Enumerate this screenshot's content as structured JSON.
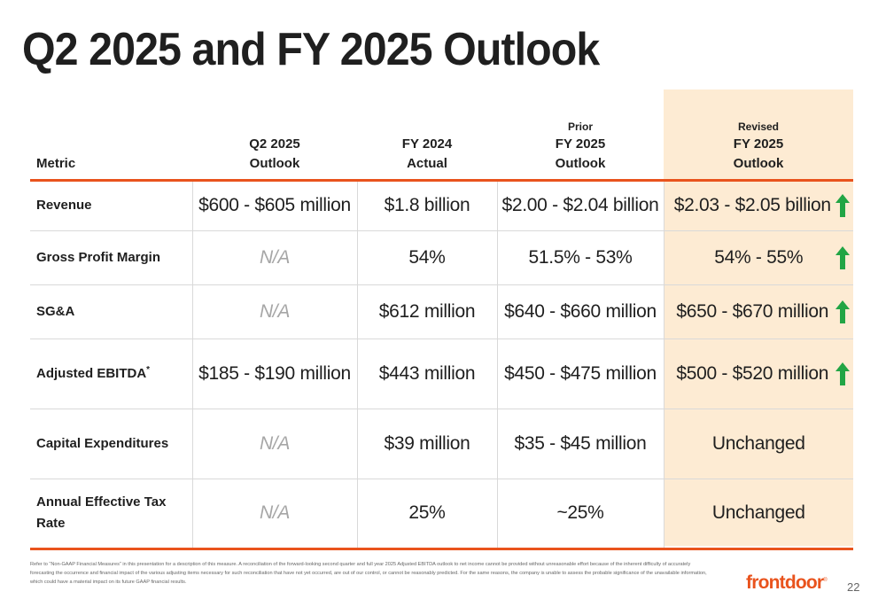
{
  "title": "Q2 2025 and FY 2025 Outlook",
  "headers": [
    {
      "top": "",
      "line1": "",
      "line2": "Metric"
    },
    {
      "top": "",
      "line1": "Q2 2025",
      "line2": "Outlook"
    },
    {
      "top": "",
      "line1": "FY 2024",
      "line2": "Actual"
    },
    {
      "top": "Prior",
      "line1": "FY 2025",
      "line2": "Outlook"
    },
    {
      "top": "Revised",
      "line1": "FY 2025",
      "line2": "Outlook"
    }
  ],
  "rows": [
    {
      "metric": "Revenue",
      "q2": "$600 - $605 million",
      "fy24": "$1.8 billion",
      "prior": "$2.00 - $2.04 billion",
      "revised": "$2.03 - $2.05 billion",
      "arrow": "up-arrow-icon"
    },
    {
      "metric": "Gross Profit Margin",
      "q2": "N/A",
      "fy24": "54%",
      "prior": "51.5% - 53%",
      "revised": "54% - 55%",
      "arrow": "up-arrow-icon"
    },
    {
      "metric": "SG&A",
      "q2": "N/A",
      "fy24": "$612 million",
      "prior": "$640 - $660 million",
      "revised": "$650 - $670 million",
      "arrow": "up-arrow-icon"
    },
    {
      "metric": "Adjusted EBITDA",
      "metric_sup": "*",
      "q2": "$185 - $190 million",
      "fy24": "$443 million",
      "prior": "$450 - $475 million",
      "revised": "$500 - $520 million",
      "arrow": "up-arrow-icon"
    },
    {
      "metric": "Capital Expenditures",
      "q2": "N/A",
      "fy24": "$39 million",
      "prior": "$35 - $45 million",
      "revised": "Unchanged"
    },
    {
      "metric": "Annual Effective Tax Rate",
      "q2": "N/A",
      "fy24": "25%",
      "prior": "~25%",
      "revised": "Unchanged"
    }
  ],
  "footnote": "Refer to “Non-GAAP Financial Measures” in this presentation for a description of this measure. A reconciliation of the forward-looking second quarter and full year 2025 Adjusted EBITDA outlook to net income cannot be provided without unreasonable effort because of the inherent difficulty of accurately forecasting the occurrence and financial impact of the various adjusting items necessary for such reconciliation that have not yet occurred, are out of our control, or cannot be reasonably predicted. For the same reasons, the company is unable to assess the probable significance of the unavailable information, which could have a material impact on its future GAAP financial results.",
  "logo": "frontdoor",
  "page_number": "22",
  "colors": {
    "accent": "#e9531d",
    "revised_bg": "#fdebd3",
    "arrow": "#22a545",
    "na_text": "#a6a6a6"
  }
}
